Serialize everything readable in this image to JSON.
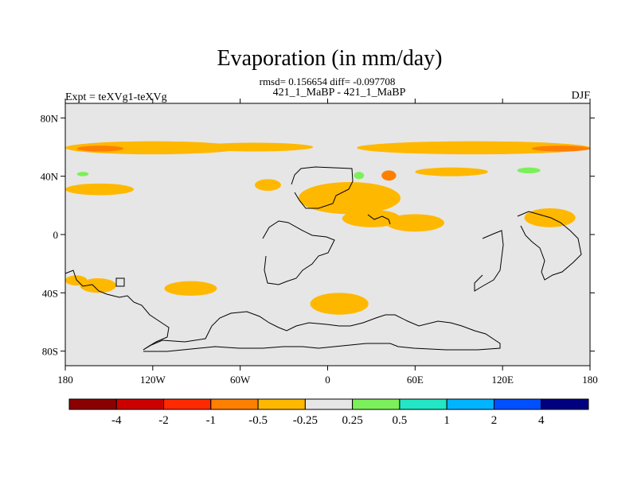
{
  "chart_data": {
    "type": "contour-map",
    "title": "Evaporation (in mm/day)",
    "stats": "rmsd= 0.156654 diff= -0.097708",
    "experiment_label": "Expt = teXVg1-teXVg",
    "comparison_label": "421_1_MaBP - 421_1_MaBP",
    "season": "DJF",
    "lon_range": [
      -180,
      180
    ],
    "lat_range": [
      -90,
      90
    ],
    "x_ticks": [
      {
        "value": -180,
        "label": "180"
      },
      {
        "value": -120,
        "label": "120W"
      },
      {
        "value": -60,
        "label": "60W"
      },
      {
        "value": 0,
        "label": "0"
      },
      {
        "value": 60,
        "label": "60E"
      },
      {
        "value": 120,
        "label": "120E"
      },
      {
        "value": 180,
        "label": "180"
      }
    ],
    "y_ticks": [
      {
        "value": 80,
        "label": "80N"
      },
      {
        "value": 40,
        "label": "40N"
      },
      {
        "value": 0,
        "label": "0"
      },
      {
        "value": -40,
        "label": "40S"
      },
      {
        "value": -80,
        "label": "80S"
      }
    ],
    "colorbar": {
      "colors": [
        "#8b0000",
        "#cd0000",
        "#ff2a00",
        "#ff7f00",
        "#ffb800",
        "#e6e6e6",
        "#7cf05a",
        "#22e6c4",
        "#00b4ff",
        "#0050ff",
        "#000080"
      ],
      "labels": [
        "-4",
        "-2",
        "-1",
        "-0.5",
        "-0.25",
        "0.25",
        "0.5",
        "1",
        "2",
        "4"
      ]
    },
    "background_color": "#e6e6e6",
    "regions": [
      {
        "level": "-0.5",
        "color": "#ffb800",
        "lon_min": -180,
        "lon_max": -60,
        "lat_min": 55,
        "lat_max": 64
      },
      {
        "level": "-1",
        "color": "#ff7f00",
        "lon_min": -172,
        "lon_max": -140,
        "lat_min": 57,
        "lat_max": 61
      },
      {
        "level": "-0.5",
        "color": "#ffb800",
        "lon_min": -90,
        "lon_max": -10,
        "lat_min": 57,
        "lat_max": 63
      },
      {
        "level": "-0.5",
        "color": "#ffb800",
        "lon_min": 20,
        "lon_max": 180,
        "lat_min": 55,
        "lat_max": 64
      },
      {
        "level": "-1",
        "color": "#ff7f00",
        "lon_min": 140,
        "lon_max": 180,
        "lat_min": 57,
        "lat_max": 61
      },
      {
        "level": "-0.5",
        "color": "#ffb800",
        "lon_min": -180,
        "lon_max": -133,
        "lat_min": 27,
        "lat_max": 35
      },
      {
        "level": "-0.5",
        "color": "#ffb800",
        "lon_min": -50,
        "lon_max": -32,
        "lat_min": 30,
        "lat_max": 38
      },
      {
        "level": "-0.5",
        "color": "#ffb800",
        "lon_min": -20,
        "lon_max": 50,
        "lat_min": 14,
        "lat_max": 36
      },
      {
        "level": "-1",
        "color": "#ff7f00",
        "lon_min": 37,
        "lon_max": 47,
        "lat_min": 37,
        "lat_max": 44
      },
      {
        "level": "-0.5",
        "color": "#ffb800",
        "lon_min": 60,
        "lon_max": 110,
        "lat_min": 40,
        "lat_max": 46
      },
      {
        "level": "-0.5",
        "color": "#ffb800",
        "lon_min": 10,
        "lon_max": 50,
        "lat_min": 5,
        "lat_max": 17
      },
      {
        "level": "-0.5",
        "color": "#ffb800",
        "lon_min": 40,
        "lon_max": 80,
        "lat_min": 2,
        "lat_max": 14
      },
      {
        "level": "-0.5",
        "color": "#ffb800",
        "lon_min": 135,
        "lon_max": 170,
        "lat_min": 5,
        "lat_max": 18
      },
      {
        "level": "-0.5",
        "color": "#ffb800",
        "lon_min": -180,
        "lon_max": -165,
        "lat_min": -35,
        "lat_max": -28
      },
      {
        "level": "-0.5",
        "color": "#ffb800",
        "lon_min": -170,
        "lon_max": -145,
        "lat_min": -40,
        "lat_max": -30
      },
      {
        "level": "-0.5",
        "color": "#ffb800",
        "lon_min": -112,
        "lon_max": -76,
        "lat_min": -42,
        "lat_max": -32
      },
      {
        "level": "-0.5",
        "color": "#ffb800",
        "lon_min": -12,
        "lon_max": 28,
        "lat_min": -55,
        "lat_max": -40
      },
      {
        "level": "0.5",
        "color": "#7cf05a",
        "lon_min": -172,
        "lon_max": -164,
        "lat_min": 40,
        "lat_max": 43
      },
      {
        "level": "0.5",
        "color": "#7cf05a",
        "lon_min": 18,
        "lon_max": 25,
        "lat_min": 38,
        "lat_max": 43
      },
      {
        "level": "0.5",
        "color": "#7cf05a",
        "lon_min": 130,
        "lon_max": 146,
        "lat_min": 42,
        "lat_max": 46
      }
    ]
  }
}
